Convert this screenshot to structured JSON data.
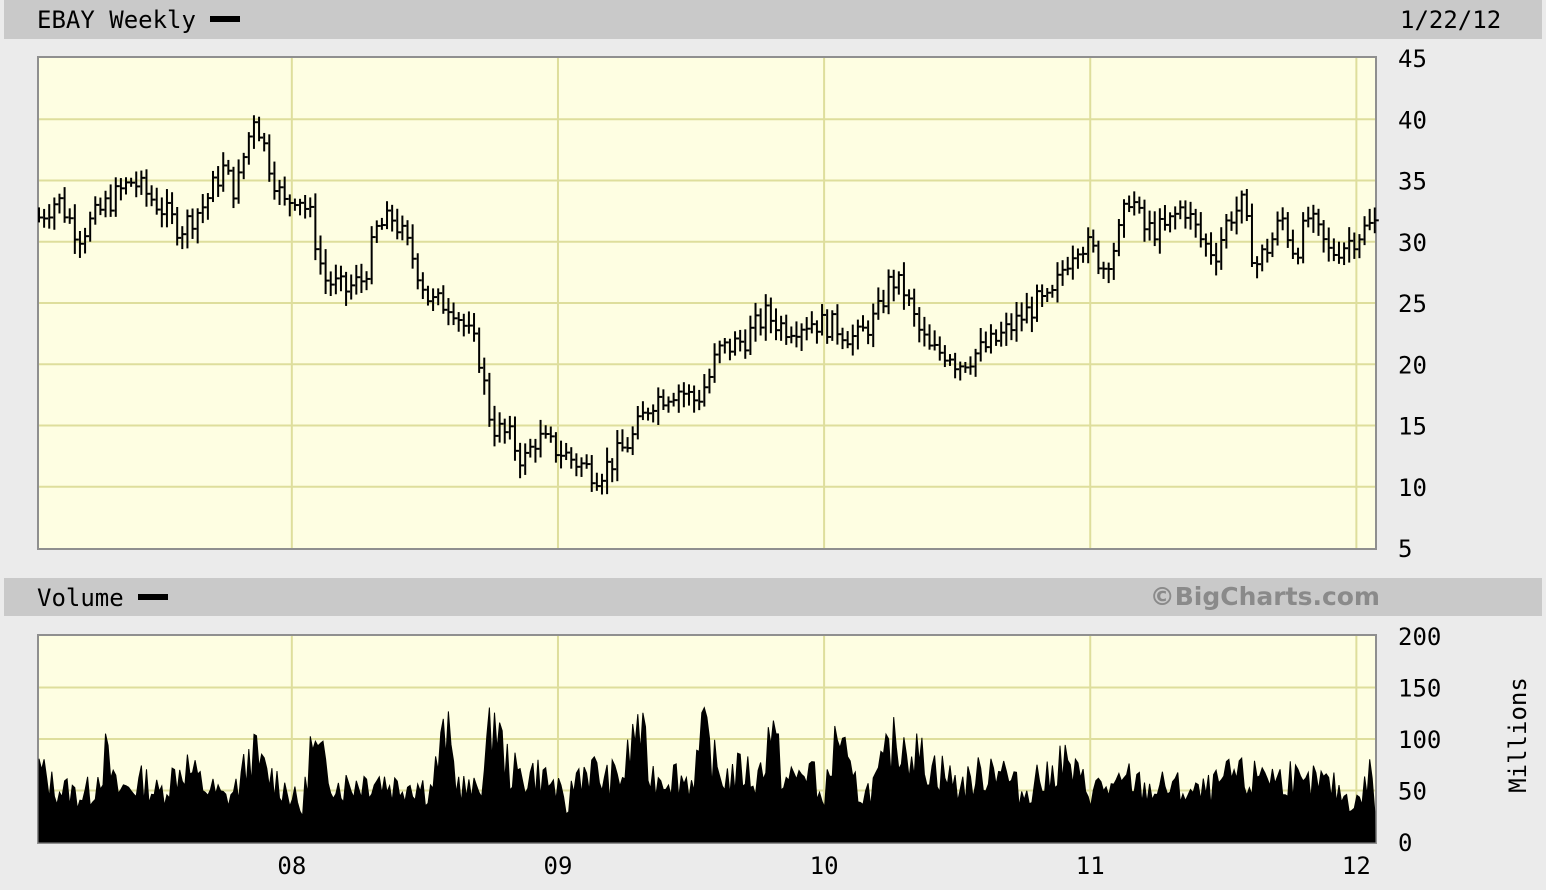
{
  "header": {
    "title": "EBAY Weekly",
    "date": "1/22/12",
    "volume_label": "Volume",
    "credit": "©BigCharts.com",
    "units": "Millions"
  },
  "colors": {
    "panel_bg": "#fefee2",
    "grid": "#dede9c",
    "bars": "#000000",
    "band": "#c9c9c9"
  },
  "chart_data": [
    {
      "type": "line",
      "title": "EBAY Weekly",
      "xlabel": "",
      "ylabel": "",
      "ylim": [
        5,
        45
      ],
      "xlim": [
        2007.05,
        2012.07
      ],
      "y_ticks": [
        45,
        40,
        35,
        30,
        25,
        20,
        15,
        10,
        5
      ],
      "x_ticks": [
        {
          "x": 2008,
          "label": "08"
        },
        {
          "x": 2009,
          "label": "09"
        },
        {
          "x": 2010,
          "label": "10"
        },
        {
          "x": 2011,
          "label": "11"
        },
        {
          "x": 2012,
          "label": "12"
        }
      ],
      "grid": true,
      "series": [
        {
          "style": "weekly-high-low-close",
          "points": [
            [
              2007.05,
              32
            ],
            [
              2007.12,
              33.5
            ],
            [
              2007.2,
              30.5
            ],
            [
              2007.3,
              33
            ],
            [
              2007.4,
              35
            ],
            [
              2007.5,
              33
            ],
            [
              2007.58,
              31
            ],
            [
              2007.67,
              33
            ],
            [
              2007.74,
              36
            ],
            [
              2007.79,
              34
            ],
            [
              2007.82,
              37
            ],
            [
              2007.86,
              40.5
            ],
            [
              2007.92,
              36
            ],
            [
              2007.97,
              33
            ],
            [
              2008.02,
              34
            ],
            [
              2008.07,
              32
            ],
            [
              2008.12,
              27
            ],
            [
              2008.2,
              26
            ],
            [
              2008.27,
              27
            ],
            [
              2008.32,
              31
            ],
            [
              2008.38,
              32
            ],
            [
              2008.45,
              29
            ],
            [
              2008.52,
              25
            ],
            [
              2008.6,
              25
            ],
            [
              2008.7,
              21
            ],
            [
              2008.75,
              15
            ],
            [
              2008.82,
              14
            ],
            [
              2008.87,
              12
            ],
            [
              2008.92,
              14
            ],
            [
              2009.0,
              13
            ],
            [
              2009.07,
              12
            ],
            [
              2009.15,
              11
            ],
            [
              2009.2,
              12
            ],
            [
              2009.28,
              14
            ],
            [
              2009.35,
              17
            ],
            [
              2009.45,
              18
            ],
            [
              2009.52,
              17
            ],
            [
              2009.57,
              19
            ],
            [
              2009.6,
              21
            ],
            [
              2009.7,
              22
            ],
            [
              2009.78,
              24
            ],
            [
              2009.85,
              23
            ],
            [
              2009.95,
              23.5
            ],
            [
              2010.05,
              23
            ],
            [
              2010.12,
              22
            ],
            [
              2010.2,
              24
            ],
            [
              2010.25,
              27
            ],
            [
              2010.3,
              26
            ],
            [
              2010.35,
              23
            ],
            [
              2010.4,
              21
            ],
            [
              2010.47,
              21
            ],
            [
              2010.5,
              20
            ],
            [
              2010.58,
              21
            ],
            [
              2010.65,
              22
            ],
            [
              2010.75,
              24
            ],
            [
              2010.8,
              25
            ],
            [
              2010.85,
              25
            ],
            [
              2010.9,
              28
            ],
            [
              2010.95,
              30
            ],
            [
              2011.0,
              29.5
            ],
            [
              2011.05,
              28
            ],
            [
              2011.1,
              30
            ],
            [
              2011.15,
              34
            ],
            [
              2011.2,
              31
            ],
            [
              2011.28,
              31
            ],
            [
              2011.35,
              33
            ],
            [
              2011.42,
              30
            ],
            [
              2011.47,
              29
            ],
            [
              2011.52,
              32
            ],
            [
              2011.57,
              33
            ],
            [
              2011.62,
              28
            ],
            [
              2011.68,
              30
            ],
            [
              2011.72,
              32
            ],
            [
              2011.77,
              29
            ],
            [
              2011.82,
              32
            ],
            [
              2011.9,
              29
            ],
            [
              2011.97,
              30
            ],
            [
              2012.03,
              31
            ],
            [
              2012.07,
              31.5
            ]
          ]
        }
      ]
    },
    {
      "type": "area",
      "title": "Volume",
      "xlabel": "",
      "ylabel": "Millions",
      "ylim": [
        0,
        200
      ],
      "xlim": [
        2007.05,
        2012.07
      ],
      "y_ticks": [
        200,
        150,
        100,
        50,
        0
      ],
      "grid": true,
      "series": [
        {
          "name": "Volume",
          "points": [
            [
              2007.05,
              85
            ],
            [
              2007.1,
              65
            ],
            [
              2007.15,
              60
            ],
            [
              2007.2,
              55
            ],
            [
              2007.25,
              60
            ],
            [
              2007.3,
              100
            ],
            [
              2007.34,
              60
            ],
            [
              2007.4,
              65
            ],
            [
              2007.45,
              70
            ],
            [
              2007.5,
              55
            ],
            [
              2007.55,
              75
            ],
            [
              2007.6,
              90
            ],
            [
              2007.65,
              70
            ],
            [
              2007.7,
              60
            ],
            [
              2007.75,
              50
            ],
            [
              2007.8,
              65
            ],
            [
              2007.85,
              105
            ],
            [
              2007.9,
              80
            ],
            [
              2007.95,
              70
            ],
            [
              2008.0,
              55
            ],
            [
              2008.04,
              35
            ],
            [
              2008.07,
              110
            ],
            [
              2008.12,
              90
            ],
            [
              2008.18,
              65
            ],
            [
              2008.25,
              70
            ],
            [
              2008.32,
              75
            ],
            [
              2008.38,
              65
            ],
            [
              2008.45,
              70
            ],
            [
              2008.52,
              60
            ],
            [
              2008.58,
              130
            ],
            [
              2008.62,
              70
            ],
            [
              2008.68,
              55
            ],
            [
              2008.72,
              80
            ],
            [
              2008.76,
              150
            ],
            [
              2008.8,
              95
            ],
            [
              2008.85,
              75
            ],
            [
              2008.9,
              80
            ],
            [
              2008.95,
              75
            ],
            [
              2009.0,
              60
            ],
            [
              2009.03,
              35
            ],
            [
              2009.07,
              80
            ],
            [
              2009.12,
              85
            ],
            [
              2009.18,
              70
            ],
            [
              2009.25,
              80
            ],
            [
              2009.3,
              140
            ],
            [
              2009.35,
              75
            ],
            [
              2009.42,
              80
            ],
            [
              2009.5,
              70
            ],
            [
              2009.55,
              125
            ],
            [
              2009.6,
              80
            ],
            [
              2009.65,
              75
            ],
            [
              2009.7,
              85
            ],
            [
              2009.75,
              70
            ],
            [
              2009.8,
              135
            ],
            [
              2009.85,
              70
            ],
            [
              2009.9,
              75
            ],
            [
              2009.95,
              90
            ],
            [
              2009.98,
              50
            ],
            [
              2010.02,
              70
            ],
            [
              2010.05,
              135
            ],
            [
              2010.1,
              70
            ],
            [
              2010.15,
              55
            ],
            [
              2010.2,
              70
            ],
            [
              2010.25,
              110
            ],
            [
              2010.3,
              120
            ],
            [
              2010.35,
              100
            ],
            [
              2010.4,
              90
            ],
            [
              2010.45,
              80
            ],
            [
              2010.5,
              65
            ],
            [
              2010.55,
              70
            ],
            [
              2010.6,
              80
            ],
            [
              2010.65,
              95
            ],
            [
              2010.7,
              70
            ],
            [
              2010.75,
              55
            ],
            [
              2010.8,
              75
            ],
            [
              2010.85,
              70
            ],
            [
              2010.88,
              100
            ],
            [
              2010.95,
              75
            ],
            [
              2011.0,
              60
            ],
            [
              2011.05,
              65
            ],
            [
              2011.1,
              60
            ],
            [
              2011.15,
              75
            ],
            [
              2011.2,
              60
            ],
            [
              2011.3,
              65
            ],
            [
              2011.4,
              55
            ],
            [
              2011.45,
              60
            ],
            [
              2011.5,
              70
            ],
            [
              2011.55,
              80
            ],
            [
              2011.6,
              65
            ],
            [
              2011.65,
              90
            ],
            [
              2011.7,
              70
            ],
            [
              2011.75,
              80
            ],
            [
              2011.8,
              60
            ],
            [
              2011.85,
              70
            ],
            [
              2011.9,
              65
            ],
            [
              2011.95,
              55
            ],
            [
              2012.0,
              45
            ],
            [
              2012.03,
              60
            ],
            [
              2012.05,
              85
            ],
            [
              2012.07,
              40
            ]
          ]
        }
      ]
    }
  ]
}
